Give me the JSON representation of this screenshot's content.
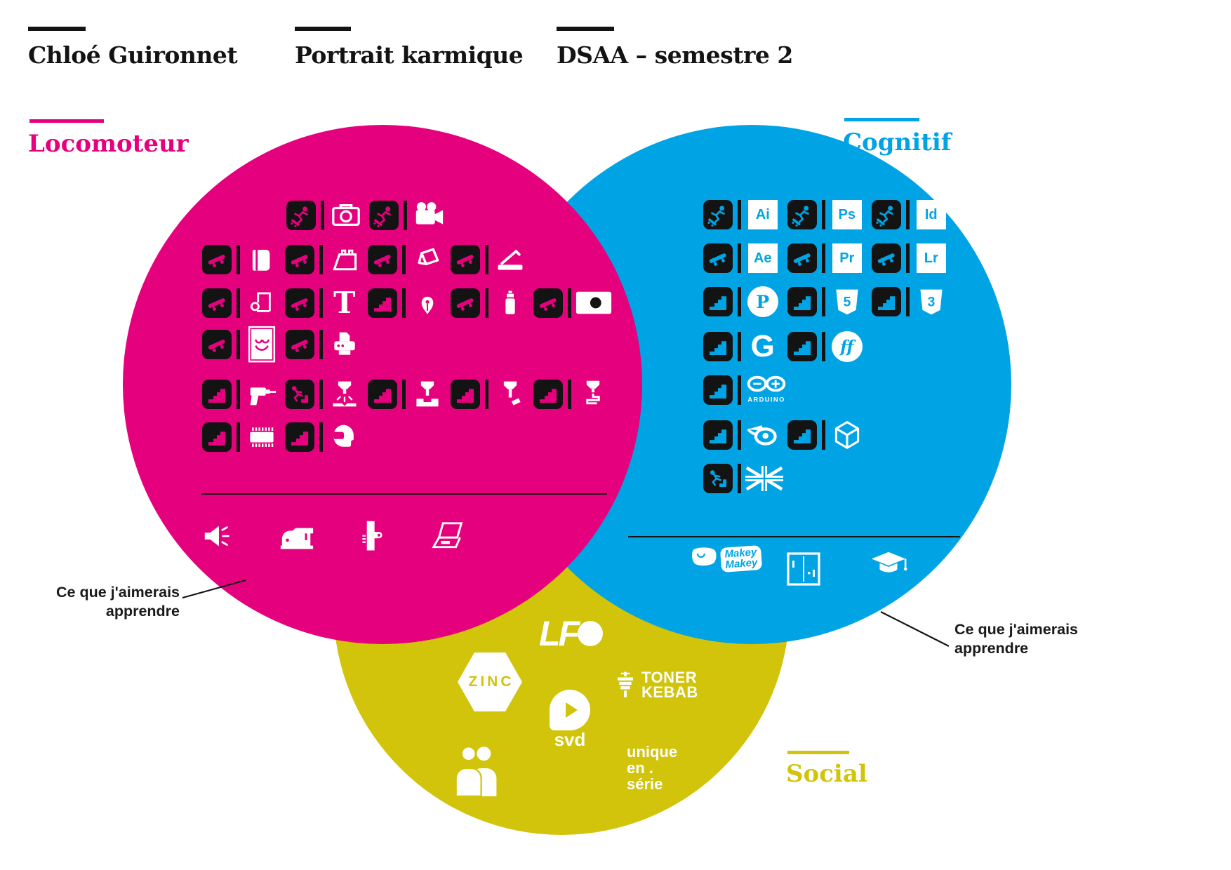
{
  "header": {
    "author": "Chloé Guironnet",
    "title": "Portrait karmique",
    "context": "DSAA – semestre 2"
  },
  "colors": {
    "magenta": "#E5007D",
    "cyan": "#00A4E4",
    "yellow": "#D2C30B",
    "ink": "#131313"
  },
  "notes": {
    "left": [
      "Ce que j'aimerais",
      "apprendre"
    ],
    "right": [
      "Ce que j'aimerais",
      "apprendre"
    ]
  },
  "locomoteur": {
    "label": "Locomoteur",
    "rows": [
      [
        {
          "level": "skater-falling",
          "icon": "camera"
        },
        {
          "level": "skater-falling",
          "icon": "video-camera"
        }
      ],
      [
        {
          "level": "skateboard",
          "icon": "book"
        },
        {
          "level": "skateboard",
          "icon": "portfolio-case"
        },
        {
          "level": "skateboard",
          "icon": "paper-cube"
        },
        {
          "level": "skateboard",
          "icon": "paper-trimmer"
        }
      ],
      [
        {
          "level": "skateboard",
          "icon": "paper-roll"
        },
        {
          "level": "skateboard",
          "icon": "letter-t",
          "text": "T"
        },
        {
          "level": "stairs",
          "icon": "pen-nib"
        },
        {
          "level": "skateboard",
          "icon": "spray-can"
        },
        {
          "level": "skateboard",
          "icon": "japan-flag"
        }
      ],
      [
        {
          "level": "skateboard",
          "icon": "smiley-poster"
        },
        {
          "level": "skateboard",
          "icon": "printer"
        }
      ],
      [
        {
          "level": "stairs",
          "icon": "drill"
        },
        {
          "level": "skater-stairs",
          "icon": "milling-machine"
        },
        {
          "level": "stairs",
          "icon": "mill-vertical"
        },
        {
          "level": "stairs",
          "icon": "mill-cut"
        },
        {
          "level": "stairs",
          "icon": "printer-3d"
        }
      ],
      [
        {
          "level": "stairs",
          "icon": "microchip"
        },
        {
          "level": "stairs",
          "icon": "vr-headset"
        }
      ]
    ],
    "wishlist": [
      "megaphone",
      "sewing-machine",
      "staple-gun",
      "laptop"
    ]
  },
  "cognitif": {
    "label": "Cognitif",
    "rows": [
      [
        {
          "level": "skater-falling",
          "icon": "adobe-badge",
          "text": "Ai"
        },
        {
          "level": "skater-falling",
          "icon": "adobe-badge",
          "text": "Ps"
        },
        {
          "level": "skater-falling",
          "icon": "adobe-badge",
          "text": "Id"
        }
      ],
      [
        {
          "level": "skateboard",
          "icon": "adobe-badge",
          "text": "Ae"
        },
        {
          "level": "skateboard",
          "icon": "adobe-badge",
          "text": "Pr"
        },
        {
          "level": "skateboard",
          "icon": "adobe-badge",
          "text": "Lr"
        }
      ],
      [
        {
          "level": "stairs",
          "icon": "processing-logo",
          "text": "P"
        },
        {
          "level": "stairs",
          "icon": "shield",
          "text": "5"
        },
        {
          "level": "stairs",
          "icon": "shield",
          "text": "3"
        }
      ],
      [
        {
          "level": "stairs",
          "icon": "glyphs-logo",
          "text": "G"
        },
        {
          "level": "stairs",
          "icon": "fontforge-logo",
          "text": "ff"
        }
      ],
      [
        {
          "level": "stairs",
          "icon": "arduino-logo",
          "text": "ARDUINO"
        }
      ],
      [
        {
          "level": "stairs",
          "icon": "blender-logo"
        },
        {
          "level": "stairs",
          "icon": "unity-logo"
        }
      ],
      [
        {
          "level": "skater-stairs",
          "icon": "uk-flag"
        }
      ]
    ],
    "makey": [
      "Makey",
      "Makey"
    ]
  },
  "social": {
    "label": "Social",
    "lfo": "LFO",
    "zinc": "ZINC",
    "svd": "svd",
    "toner": [
      "TONER",
      "KEBAB"
    ],
    "unique": [
      "unique",
      "en .",
      "série"
    ]
  }
}
